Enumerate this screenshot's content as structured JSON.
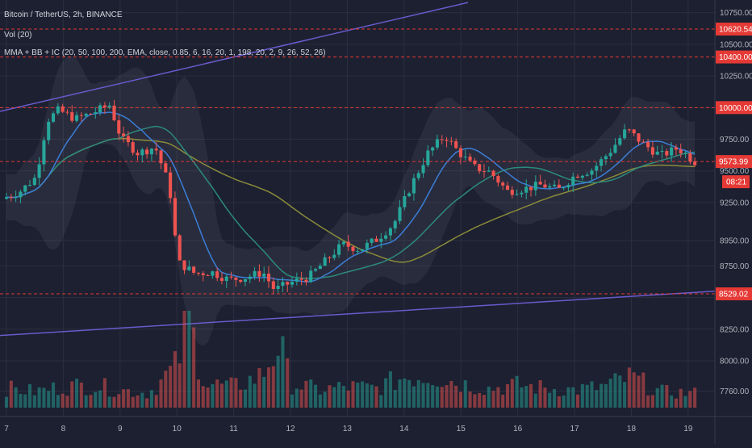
{
  "legend": {
    "title": "Bitcoin / TetherUS, 2h, BINANCE",
    "volume": "Vol (20)",
    "indicator": "MMA + BB + IC (20, 50, 100, 200, EMA, close, 0.85, 6, 16, 20, 1, 198, 20, 2, 9, 26, 52, 26)"
  },
  "colors": {
    "background": "#1c2030",
    "up": "#26a69a",
    "down": "#ef5350",
    "price_line": "#e53935"
  },
  "chart_data": {
    "type": "candlestick",
    "x_labels": [
      "7",
      "8",
      "9",
      "10",
      "11",
      "12",
      "13",
      "14",
      "15",
      "16",
      "17",
      "18",
      "19"
    ],
    "y_ticks": [
      10750,
      10500,
      10250,
      10000,
      9750,
      9500,
      9250,
      8950,
      8750,
      8500,
      8250,
      8000,
      7760
    ],
    "y_tick_labels": [
      "10750.00",
      "10500.00",
      "10250.00",
      "10000.00",
      "9750.00",
      "9500.00",
      "9250.00",
      "8950.00",
      "8750.00",
      "8500.00",
      "8250.00",
      "8000.00",
      "7760.00"
    ],
    "ylim": [
      7560,
      10850
    ],
    "x_range_days": [
      7,
      19.3
    ],
    "price_levels": [
      {
        "value": 10620.54,
        "label": "10620.54"
      },
      {
        "value": 10400.0,
        "label": "10400.00"
      },
      {
        "value": 10000.0,
        "label": "10000.00"
      },
      {
        "value": 9573.99,
        "label": "9573.99"
      },
      {
        "value": 8529.02,
        "label": "8529.02"
      }
    ],
    "countdown": "08:21",
    "close_series": [
      [
        7.0,
        9280
      ],
      [
        7.3,
        9330
      ],
      [
        7.6,
        9450
      ],
      [
        7.8,
        9900
      ],
      [
        8.0,
        9980
      ],
      [
        8.3,
        9910
      ],
      [
        8.6,
        9960
      ],
      [
        8.9,
        10020
      ],
      [
        9.1,
        9760
      ],
      [
        9.4,
        9640
      ],
      [
        9.7,
        9690
      ],
      [
        9.95,
        9380
      ],
      [
        10.1,
        8780
      ],
      [
        10.4,
        8690
      ],
      [
        10.7,
        8700
      ],
      [
        11.0,
        8640
      ],
      [
        11.3,
        8660
      ],
      [
        11.6,
        8700
      ],
      [
        11.8,
        8560
      ],
      [
        12.1,
        8620
      ],
      [
        12.4,
        8660
      ],
      [
        12.7,
        8790
      ],
      [
        13.0,
        8920
      ],
      [
        13.3,
        8880
      ],
      [
        13.6,
        8960
      ],
      [
        13.9,
        9080
      ],
      [
        14.2,
        9380
      ],
      [
        14.5,
        9640
      ],
      [
        14.8,
        9780
      ],
      [
        15.0,
        9670
      ],
      [
        15.3,
        9530
      ],
      [
        15.6,
        9490
      ],
      [
        15.9,
        9340
      ],
      [
        16.2,
        9360
      ],
      [
        16.5,
        9390
      ],
      [
        16.8,
        9350
      ],
      [
        17.1,
        9470
      ],
      [
        17.4,
        9510
      ],
      [
        17.7,
        9650
      ],
      [
        18.0,
        9830
      ],
      [
        18.3,
        9710
      ],
      [
        18.6,
        9620
      ],
      [
        18.9,
        9680
      ],
      [
        19.2,
        9573.99
      ]
    ],
    "volume_series": [
      [
        7.0,
        24
      ],
      [
        7.5,
        20
      ],
      [
        8.0,
        26
      ],
      [
        8.5,
        28
      ],
      [
        9.0,
        22
      ],
      [
        9.5,
        18
      ],
      [
        10.0,
        52
      ],
      [
        10.2,
        110
      ],
      [
        10.5,
        30
      ],
      [
        11.0,
        26
      ],
      [
        11.5,
        40
      ],
      [
        11.8,
        80
      ],
      [
        12.0,
        30
      ],
      [
        12.5,
        22
      ],
      [
        13.0,
        26
      ],
      [
        13.5,
        24
      ],
      [
        14.0,
        38
      ],
      [
        14.5,
        40
      ],
      [
        15.0,
        30
      ],
      [
        15.5,
        24
      ],
      [
        16.0,
        28
      ],
      [
        16.5,
        24
      ],
      [
        17.0,
        22
      ],
      [
        17.5,
        26
      ],
      [
        18.0,
        38
      ],
      [
        18.5,
        20
      ],
      [
        19.0,
        18
      ]
    ]
  }
}
